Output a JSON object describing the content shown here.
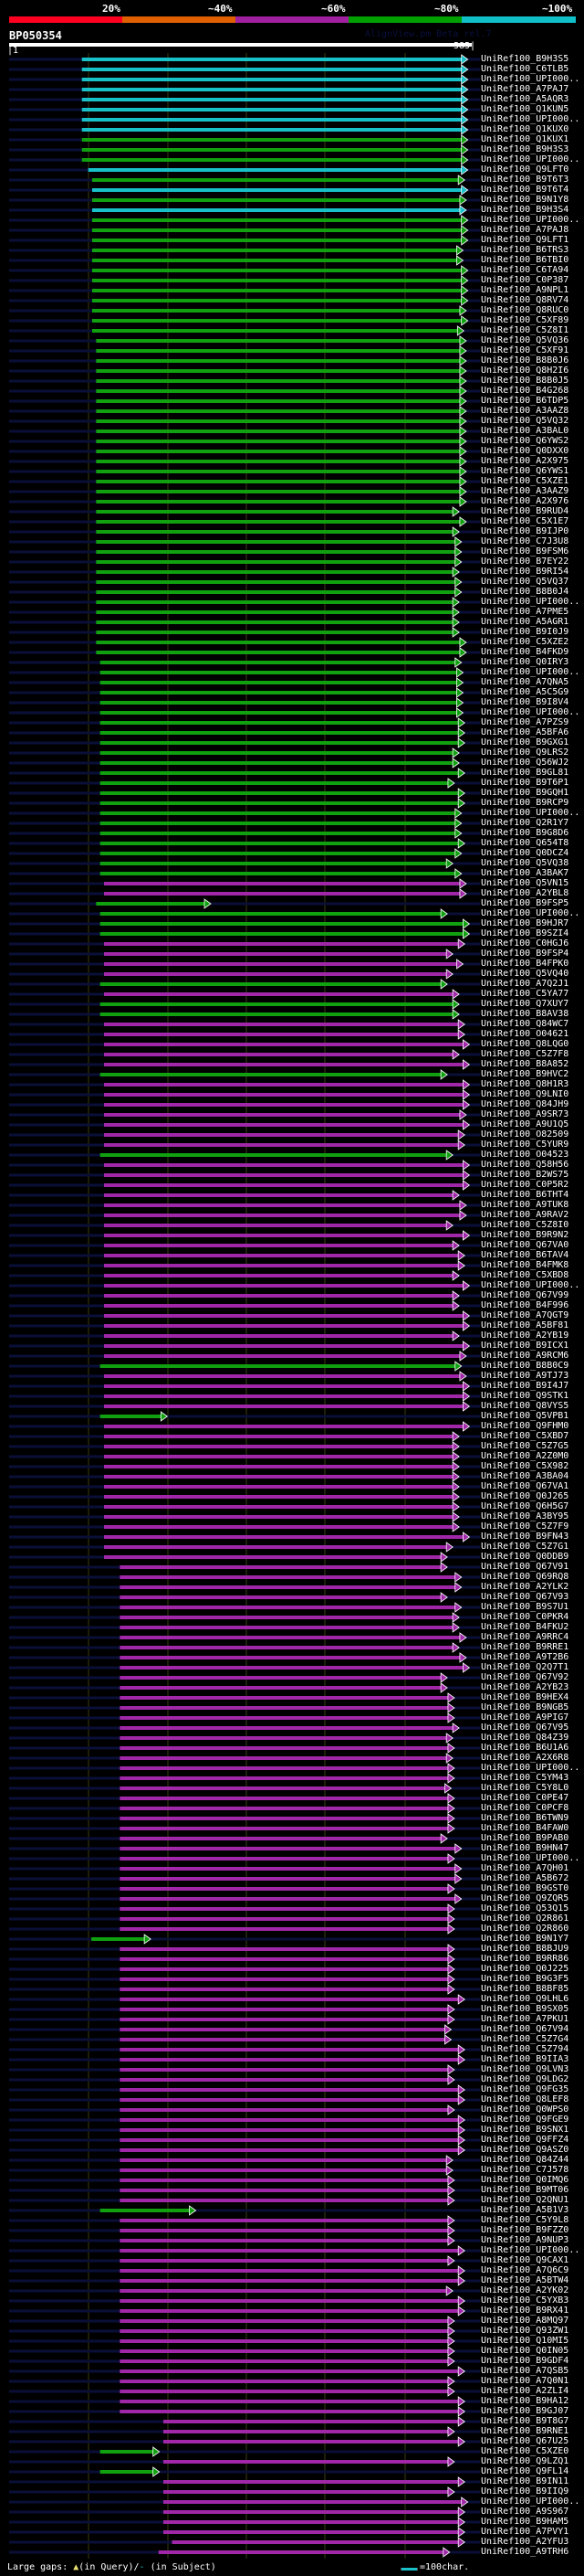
{
  "header": {
    "pct_labels": [
      "20%",
      "~40%",
      "~60%",
      "~80%",
      "~100%"
    ],
    "pct_colors": [
      "#ff0020",
      "#e06000",
      "#a020a0",
      "#00a000",
      "#10c0c8"
    ],
    "title": "BP050354",
    "version": "AlignView.pm Beta rel.7",
    "ruler_start": "|1",
    "ruler_end": "585|"
  },
  "query_length": 585,
  "colors": {
    "c": "#18c0c8",
    "g": "#10a010",
    "m": "#a028a8",
    "navy": "#0a0f38",
    "grid": "#3a3a10"
  },
  "rows": [
    [
      "UniRef100_B9H3S5",
      "c",
      92,
      580
    ],
    [
      "UniRef100_C6TLB5",
      "c",
      92,
      580
    ],
    [
      "UniRef100_UPI000..",
      "c",
      92,
      580
    ],
    [
      "UniRef100_A7PAJ7",
      "c",
      92,
      580
    ],
    [
      "UniRef100_A5AQR3",
      "c",
      92,
      580
    ],
    [
      "UniRef100_Q1KUN5",
      "c",
      92,
      580
    ],
    [
      "UniRef100_UPI000..",
      "c",
      92,
      580
    ],
    [
      "UniRef100_Q1KUX0",
      "c",
      92,
      580
    ],
    [
      "UniRef100_Q1KUX1",
      "g",
      92,
      580
    ],
    [
      "UniRef100_B9H3S3",
      "g",
      92,
      580
    ],
    [
      "UniRef100_UPI000..",
      "g",
      92,
      580
    ],
    [
      "UniRef100_Q9LFT0",
      "c",
      100,
      580
    ],
    [
      "UniRef100_B9T6T3",
      "g",
      105,
      576
    ],
    [
      "UniRef100_B9T6T4",
      "c",
      105,
      580
    ],
    [
      "UniRef100_B9N1Y8",
      "g",
      105,
      578
    ],
    [
      "UniRef100_B9H3S4",
      "c",
      105,
      578
    ],
    [
      "UniRef100_UPI000..",
      "g",
      105,
      580
    ],
    [
      "UniRef100_A7PAJ8",
      "g",
      105,
      580
    ],
    [
      "UniRef100_Q9LFT1",
      "g",
      105,
      580
    ],
    [
      "UniRef100_B6TRS3",
      "g",
      105,
      574
    ],
    [
      "UniRef100_B6TBI0",
      "g",
      105,
      574
    ],
    [
      "UniRef100_C6TA94",
      "g",
      105,
      580
    ],
    [
      "UniRef100_C0P387",
      "g",
      105,
      580
    ],
    [
      "UniRef100_A9NPL1",
      "g",
      105,
      580
    ],
    [
      "UniRef100_Q8RV74",
      "g",
      105,
      580
    ],
    [
      "UniRef100_Q8RUC0",
      "g",
      105,
      578
    ],
    [
      "UniRef100_C5XF89",
      "g",
      105,
      580
    ],
    [
      "UniRef100_C5Z8I1",
      "g",
      105,
      575
    ],
    [
      "UniRef100_Q5VQ36",
      "g",
      110,
      578
    ],
    [
      "UniRef100_C5XF91",
      "g",
      110,
      578
    ],
    [
      "UniRef100_B8B0J6",
      "g",
      110,
      578
    ],
    [
      "UniRef100_Q8H2I6",
      "g",
      110,
      578
    ],
    [
      "UniRef100_B8B0J5",
      "g",
      110,
      578
    ],
    [
      "UniRef100_B4G268",
      "g",
      110,
      578
    ],
    [
      "UniRef100_B6TDP5",
      "g",
      110,
      578
    ],
    [
      "UniRef100_A3AAZ8",
      "g",
      110,
      578
    ],
    [
      "UniRef100_Q5VQ32",
      "g",
      110,
      578
    ],
    [
      "UniRef100_A3BAL0",
      "g",
      110,
      578
    ],
    [
      "UniRef100_Q6YWS2",
      "g",
      110,
      578
    ],
    [
      "UniRef100_Q0DXX0",
      "g",
      110,
      578
    ],
    [
      "UniRef100_A2X975",
      "g",
      110,
      578
    ],
    [
      "UniRef100_Q6YWS1",
      "g",
      110,
      578
    ],
    [
      "UniRef100_C5XZE1",
      "g",
      110,
      578
    ],
    [
      "UniRef100_A3AAZ9",
      "g",
      110,
      578
    ],
    [
      "UniRef100_A2X976",
      "g",
      110,
      578
    ],
    [
      "UniRef100_B9RUD4",
      "g",
      110,
      569
    ],
    [
      "UniRef100_C5X1E7",
      "g",
      110,
      578
    ],
    [
      "UniRef100_B9IJP0",
      "g",
      110,
      569
    ],
    [
      "UniRef100_C7J3U8",
      "g",
      110,
      572
    ],
    [
      "UniRef100_B9FSM6",
      "g",
      110,
      572
    ],
    [
      "UniRef100_B7EY22",
      "g",
      110,
      572
    ],
    [
      "UniRef100_B9RI54",
      "g",
      110,
      569
    ],
    [
      "UniRef100_Q5VQ37",
      "g",
      110,
      572
    ],
    [
      "UniRef100_B8B0J4",
      "g",
      110,
      572
    ],
    [
      "UniRef100_UPI000..",
      "g",
      110,
      569
    ],
    [
      "UniRef100_A7PME5",
      "g",
      110,
      569
    ],
    [
      "UniRef100_A5AGR1",
      "g",
      110,
      569
    ],
    [
      "UniRef100_B9I0J9",
      "g",
      110,
      569
    ],
    [
      "UniRef100_C5XZE2",
      "g",
      110,
      578
    ],
    [
      "UniRef100_B4FKD9",
      "g",
      110,
      578
    ],
    [
      "UniRef100_Q0IRY3",
      "g",
      115,
      572
    ],
    [
      "UniRef100_UPI000..",
      "g",
      115,
      574
    ],
    [
      "UniRef100_A7QNA5",
      "g",
      115,
      574
    ],
    [
      "UniRef100_A5C5G9",
      "g",
      115,
      574
    ],
    [
      "UniRef100_B9I8V4",
      "g",
      115,
      574
    ],
    [
      "UniRef100_UPI000..",
      "g",
      115,
      574
    ],
    [
      "UniRef100_A7PZS9",
      "g",
      115,
      576
    ],
    [
      "UniRef100_A5BFA6",
      "g",
      115,
      576
    ],
    [
      "UniRef100_B9GXG1",
      "g",
      115,
      576
    ],
    [
      "UniRef100_Q9LRS2",
      "g",
      115,
      569
    ],
    [
      "UniRef100_Q56WJ2",
      "g",
      115,
      569
    ],
    [
      "UniRef100_B9GL81",
      "g",
      115,
      576
    ],
    [
      "UniRef100_B9T6P1",
      "g",
      115,
      563
    ],
    [
      "UniRef100_B9GQH1",
      "g",
      115,
      576
    ],
    [
      "UniRef100_B9RCP9",
      "g",
      115,
      576
    ],
    [
      "UniRef100_UPI000..",
      "g",
      115,
      572
    ],
    [
      "UniRef100_Q2R1Y7",
      "g",
      115,
      572
    ],
    [
      "UniRef100_B9G8D6",
      "g",
      115,
      572
    ],
    [
      "UniRef100_Q654T8",
      "g",
      115,
      576
    ],
    [
      "UniRef100_Q0DCZ4",
      "g",
      115,
      572
    ],
    [
      "UniRef100_Q5VQ38",
      "g",
      115,
      561
    ],
    [
      "UniRef100_A3BAK7",
      "g",
      115,
      572
    ],
    [
      "UniRef100_Q5VN15",
      "m",
      120,
      578
    ],
    [
      "UniRef100_A2YBL8",
      "m",
      120,
      578
    ],
    [
      "UniRef100_B9FSP5",
      "g",
      110,
      255
    ],
    [
      "UniRef100_UPI000..",
      "g",
      115,
      554
    ],
    [
      "UniRef100_B9HJR7",
      "g",
      115,
      582
    ],
    [
      "UniRef100_B9SZI4",
      "g",
      115,
      582
    ],
    [
      "UniRef100_C0HGJ6",
      "m",
      120,
      576
    ],
    [
      "UniRef100_B9FSP4",
      "m",
      120,
      561
    ],
    [
      "UniRef100_B4FPK0",
      "m",
      120,
      574
    ],
    [
      "UniRef100_Q5VQ40",
      "m",
      120,
      561
    ],
    [
      "UniRef100_A7Q2J1",
      "g",
      115,
      554
    ],
    [
      "UniRef100_C5YA77",
      "m",
      120,
      569
    ],
    [
      "UniRef100_Q7XUY7",
      "g",
      115,
      569
    ],
    [
      "UniRef100_B8AV38",
      "g",
      115,
      569
    ],
    [
      "UniRef100_Q84WC7",
      "m",
      120,
      576
    ],
    [
      "UniRef100_O04621",
      "m",
      120,
      576
    ],
    [
      "UniRef100_Q8LQG0",
      "m",
      120,
      582
    ],
    [
      "UniRef100_C5Z7F8",
      "m",
      120,
      569
    ],
    [
      "UniRef100_B8A852",
      "m",
      120,
      582
    ],
    [
      "UniRef100_B9HVC2",
      "g",
      115,
      554
    ],
    [
      "UniRef100_Q8H1R3",
      "m",
      120,
      582
    ],
    [
      "UniRef100_Q9LNI0",
      "m",
      120,
      582
    ],
    [
      "UniRef100_Q84JH9",
      "m",
      120,
      582
    ],
    [
      "UniRef100_A9SR73",
      "m",
      120,
      578
    ],
    [
      "UniRef100_A9U1Q5",
      "m",
      120,
      582
    ],
    [
      "UniRef100_O82509",
      "m",
      120,
      576
    ],
    [
      "UniRef100_C5YUR9",
      "m",
      120,
      576
    ],
    [
      "UniRef100_O04523",
      "g",
      115,
      561
    ],
    [
      "UniRef100_Q58H56",
      "m",
      120,
      582
    ],
    [
      "UniRef100_B2WS75",
      "m",
      120,
      582
    ],
    [
      "UniRef100_C0P5R2",
      "m",
      120,
      582
    ],
    [
      "UniRef100_B6THT4",
      "m",
      120,
      569
    ],
    [
      "UniRef100_A9TUK8",
      "m",
      120,
      578
    ],
    [
      "UniRef100_A9RAV2",
      "m",
      120,
      578
    ],
    [
      "UniRef100_C5Z8I0",
      "m",
      120,
      561
    ],
    [
      "UniRef100_B9R9N2",
      "m",
      120,
      582
    ],
    [
      "UniRef100_Q67VA0",
      "m",
      120,
      569
    ],
    [
      "UniRef100_B6TAV4",
      "m",
      120,
      576
    ],
    [
      "UniRef100_B4FMK8",
      "m",
      120,
      576
    ],
    [
      "UniRef100_C5XBD8",
      "m",
      120,
      569
    ],
    [
      "UniRef100_UPI000..",
      "m",
      120,
      582
    ],
    [
      "UniRef100_Q67V99",
      "m",
      120,
      569
    ],
    [
      "UniRef100_B4F996",
      "m",
      120,
      569
    ],
    [
      "UniRef100_A7QGT9",
      "m",
      120,
      582
    ],
    [
      "UniRef100_A5BF81",
      "m",
      120,
      582
    ],
    [
      "UniRef100_A2YB19",
      "m",
      120,
      569
    ],
    [
      "UniRef100_B9ICX1",
      "m",
      120,
      582
    ],
    [
      "UniRef100_A9RCM6",
      "m",
      120,
      578
    ],
    [
      "UniRef100_B8B0C9",
      "g",
      115,
      572
    ],
    [
      "UniRef100_A9TJ73",
      "m",
      120,
      578
    ],
    [
      "UniRef100_B9I4J7",
      "m",
      120,
      582
    ],
    [
      "UniRef100_Q9STK1",
      "m",
      120,
      582
    ],
    [
      "UniRef100_Q8VYS5",
      "m",
      120,
      582
    ],
    [
      "UniRef100_Q5VPB1",
      "g",
      115,
      200
    ],
    [
      "UniRef100_Q9FHM0",
      "m",
      120,
      582
    ],
    [
      "UniRef100_C5XBD7",
      "m",
      120,
      569
    ],
    [
      "UniRef100_C5Z7G5",
      "m",
      120,
      569
    ],
    [
      "UniRef100_A2Z0M0",
      "m",
      120,
      569
    ],
    [
      "UniRef100_C5X982",
      "m",
      120,
      569
    ],
    [
      "UniRef100_A3BA04",
      "m",
      120,
      569
    ],
    [
      "UniRef100_Q67VA1",
      "m",
      120,
      569
    ],
    [
      "UniRef100_Q0J265",
      "m",
      120,
      569
    ],
    [
      "UniRef100_Q6H5G7",
      "m",
      120,
      569
    ],
    [
      "UniRef100_A3BY95",
      "m",
      120,
      569
    ],
    [
      "UniRef100_C5Z7F9",
      "m",
      120,
      569
    ],
    [
      "UniRef100_B9FN43",
      "m",
      120,
      582
    ],
    [
      "UniRef100_C5Z7G1",
      "m",
      120,
      561
    ],
    [
      "UniRef100_Q0DDB9",
      "m",
      120,
      554
    ],
    [
      "UniRef100_Q67V91",
      "m",
      140,
      554
    ],
    [
      "UniRef100_Q69RQ8",
      "m",
      140,
      572
    ],
    [
      "UniRef100_A2YLK2",
      "m",
      140,
      572
    ],
    [
      "UniRef100_Q67V93",
      "m",
      140,
      554
    ],
    [
      "UniRef100_B9S7U1",
      "m",
      140,
      572
    ],
    [
      "UniRef100_C0PKR4",
      "m",
      140,
      569
    ],
    [
      "UniRef100_B4FKU2",
      "m",
      140,
      569
    ],
    [
      "UniRef100_A9RRC4",
      "m",
      140,
      578
    ],
    [
      "UniRef100_B9RRE1",
      "m",
      140,
      569
    ],
    [
      "UniRef100_A9T2B6",
      "m",
      140,
      578
    ],
    [
      "UniRef100_Q2Q7T1",
      "m",
      140,
      582
    ],
    [
      "UniRef100_Q67V92",
      "m",
      140,
      554
    ],
    [
      "UniRef100_A2YB23",
      "m",
      140,
      554
    ],
    [
      "UniRef100_B9HEX4",
      "m",
      140,
      563
    ],
    [
      "UniRef100_B9NGB5",
      "m",
      140,
      563
    ],
    [
      "UniRef100_A9PIG7",
      "m",
      140,
      563
    ],
    [
      "UniRef100_Q67V95",
      "m",
      140,
      569
    ],
    [
      "UniRef100_Q84Z39",
      "m",
      140,
      561
    ],
    [
      "UniRef100_B6U1A6",
      "m",
      140,
      563
    ],
    [
      "UniRef100_A2X6R8",
      "m",
      140,
      561
    ],
    [
      "UniRef100_UPI000..",
      "m",
      140,
      563
    ],
    [
      "UniRef100_C5YM43",
      "m",
      140,
      563
    ],
    [
      "UniRef100_C5Y8L0",
      "m",
      140,
      559
    ],
    [
      "UniRef100_C0PE47",
      "m",
      140,
      563
    ],
    [
      "UniRef100_C0PCF8",
      "m",
      140,
      563
    ],
    [
      "UniRef100_B6TWN9",
      "m",
      140,
      563
    ],
    [
      "UniRef100_B4FAW0",
      "m",
      140,
      563
    ],
    [
      "UniRef100_B9PAB0",
      "m",
      140,
      554
    ],
    [
      "UniRef100_B9HN47",
      "m",
      140,
      572
    ],
    [
      "UniRef100_UPI000..",
      "m",
      140,
      563
    ],
    [
      "UniRef100_A7QH01",
      "m",
      140,
      572
    ],
    [
      "UniRef100_A5B672",
      "m",
      140,
      572
    ],
    [
      "UniRef100_B9GST0",
      "m",
      140,
      563
    ],
    [
      "UniRef100_Q9ZQR5",
      "m",
      140,
      572
    ],
    [
      "UniRef100_Q53Q15",
      "m",
      140,
      563
    ],
    [
      "UniRef100_Q2R861",
      "m",
      140,
      563
    ],
    [
      "UniRef100_Q2R860",
      "m",
      140,
      563
    ],
    [
      "UniRef100_B9N1Y7",
      "g",
      104,
      179
    ],
    [
      "UniRef100_B8BJU9",
      "m",
      140,
      563
    ],
    [
      "UniRef100_B9RR86",
      "m",
      140,
      563
    ],
    [
      "UniRef100_Q0J225",
      "m",
      140,
      563
    ],
    [
      "UniRef100_B9G3F5",
      "m",
      140,
      563
    ],
    [
      "UniRef100_B8BF85",
      "m",
      140,
      563
    ],
    [
      "UniRef100_Q9LHL6",
      "m",
      140,
      576
    ],
    [
      "UniRef100_B9SX05",
      "m",
      140,
      563
    ],
    [
      "UniRef100_A7PKU1",
      "m",
      140,
      563
    ],
    [
      "UniRef100_Q67V94",
      "m",
      140,
      559
    ],
    [
      "UniRef100_C5Z7G4",
      "m",
      140,
      559
    ],
    [
      "UniRef100_C5Z794",
      "m",
      140,
      576
    ],
    [
      "UniRef100_B9IIA3",
      "m",
      140,
      576
    ],
    [
      "UniRef100_Q9LVN3",
      "m",
      140,
      563
    ],
    [
      "UniRef100_Q9LDG2",
      "m",
      140,
      563
    ],
    [
      "UniRef100_Q9FG35",
      "m",
      140,
      576
    ],
    [
      "UniRef100_Q8LEF8",
      "m",
      140,
      576
    ],
    [
      "UniRef100_Q0WPS0",
      "m",
      140,
      563
    ],
    [
      "UniRef100_Q9FGE9",
      "m",
      140,
      576
    ],
    [
      "UniRef100_B9SNX1",
      "m",
      140,
      576
    ],
    [
      "UniRef100_Q9FFZ4",
      "m",
      140,
      576
    ],
    [
      "UniRef100_Q9ASZ0",
      "m",
      140,
      576
    ],
    [
      "UniRef100_Q84Z44",
      "m",
      140,
      561
    ],
    [
      "UniRef100_C7J578",
      "m",
      140,
      561
    ],
    [
      "UniRef100_Q0IMQ6",
      "m",
      140,
      563
    ],
    [
      "UniRef100_B9MT06",
      "m",
      140,
      563
    ],
    [
      "UniRef100_Q2QNU1",
      "m",
      140,
      563
    ],
    [
      "UniRef100_A5B1V3",
      "g",
      115,
      236
    ],
    [
      "UniRef100_C5Y9L8",
      "m",
      140,
      563
    ],
    [
      "UniRef100_B9FZZ0",
      "m",
      140,
      563
    ],
    [
      "UniRef100_A9NUP3",
      "m",
      140,
      563
    ],
    [
      "UniRef100_UPI000..",
      "m",
      140,
      576
    ],
    [
      "UniRef100_Q9CAX1",
      "m",
      140,
      563
    ],
    [
      "UniRef100_A7Q6C9",
      "m",
      140,
      576
    ],
    [
      "UniRef100_A5BTW4",
      "m",
      140,
      576
    ],
    [
      "UniRef100_A2YK02",
      "m",
      140,
      561
    ],
    [
      "UniRef100_C5YXB3",
      "m",
      140,
      576
    ],
    [
      "UniRef100_B9RX41",
      "m",
      140,
      576
    ],
    [
      "UniRef100_A8MQ97",
      "m",
      140,
      563
    ],
    [
      "UniRef100_Q93ZW1",
      "m",
      140,
      563
    ],
    [
      "UniRef100_Q10MI5",
      "m",
      140,
      563
    ],
    [
      "UniRef100_Q0IN05",
      "m",
      140,
      563
    ],
    [
      "UniRef100_B9GDF4",
      "m",
      140,
      563
    ],
    [
      "UniRef100_A7QSB5",
      "m",
      140,
      576
    ],
    [
      "UniRef100_A7Q0N1",
      "m",
      140,
      563
    ],
    [
      "UniRef100_A2ZLI4",
      "m",
      140,
      563
    ],
    [
      "UniRef100_B9HA12",
      "m",
      140,
      576
    ],
    [
      "UniRef100_B9GJ07",
      "m",
      140,
      576
    ],
    [
      "UniRef100_B9T8G7",
      "m",
      195,
      576
    ],
    [
      "UniRef100_B9RNE1",
      "m",
      195,
      563
    ],
    [
      "UniRef100_Q67U25",
      "m",
      195,
      576
    ],
    [
      "UniRef100_C5XZE0",
      "g",
      115,
      190
    ],
    [
      "UniRef100_Q9LZQ1",
      "m",
      195,
      563
    ],
    [
      "UniRef100_Q9FL14",
      "g",
      115,
      190
    ],
    [
      "UniRef100_B9IN11",
      "m",
      195,
      576
    ],
    [
      "UniRef100_B9IIQ9",
      "m",
      195,
      563
    ],
    [
      "UniRef100_UPI000..",
      "m",
      195,
      580
    ],
    [
      "UniRef100_A9S967",
      "m",
      195,
      576
    ],
    [
      "UniRef100_B9HAM5",
      "m",
      195,
      576
    ],
    [
      "UniRef100_A7PVY1",
      "m",
      195,
      576
    ],
    [
      "UniRef100_A2YFU3",
      "m",
      206,
      576
    ],
    [
      "UniRef100_A9TRH6",
      "m",
      189,
      557
    ]
  ],
  "footer": {
    "gaps_label": "Large gaps:",
    "gap_query_symbol": "▲",
    "gap_query_text": "(in Query)/",
    "gap_subject_symbol": "-",
    "gap_subject_text": " (in Subject)",
    "scale_label": "=100char."
  }
}
